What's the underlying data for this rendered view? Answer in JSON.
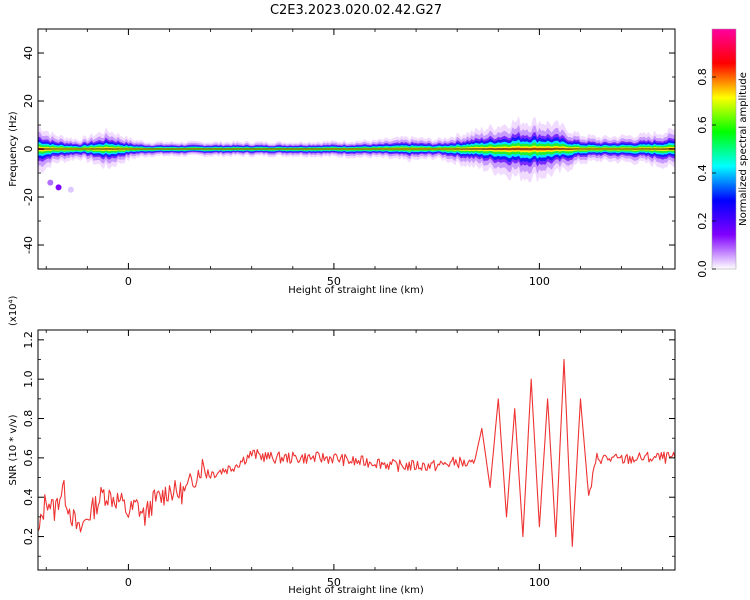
{
  "title": "C2E3.2023.020.02.42.G27",
  "chart_data": [
    {
      "type": "heatmap",
      "xlabel": "Height of straight line (km)",
      "ylabel": "Frequency (Hz)",
      "xlim": [
        -22,
        133
      ],
      "ylim": [
        -50,
        50
      ],
      "xticks": [
        "0",
        "50",
        "100"
      ],
      "xtick_values": [
        0,
        50,
        100
      ],
      "yticks": [
        "40",
        "20",
        "0",
        "-20",
        "-40"
      ],
      "ytick_values": [
        40,
        20,
        0,
        -20,
        -40
      ],
      "ridge_frequency": 0,
      "spread_profile": {
        "x": [
          -22,
          -18,
          -12,
          -5,
          1,
          5,
          20,
          40,
          60,
          68,
          75,
          80,
          85,
          90,
          95,
          100,
          105,
          110,
          115,
          125,
          133
        ],
        "halfwidth": [
          5,
          3,
          2,
          4,
          2,
          1.5,
          1.5,
          1.5,
          1.8,
          2.5,
          2,
          3,
          4,
          5,
          6,
          6,
          5,
          3,
          2.5,
          3,
          4
        ]
      },
      "outlier_points": [
        {
          "x": -19,
          "y": -14,
          "amplitude": 0.05
        },
        {
          "x": -17,
          "y": -16,
          "amplitude": 0.1
        },
        {
          "x": -14,
          "y": -17,
          "amplitude": 0.02
        }
      ],
      "colorbar": {
        "label": "Normalized spectral amplitude",
        "range": [
          0,
          1
        ],
        "ticks": [
          "0.0",
          "0.2",
          "0.4",
          "0.6",
          "0.8"
        ],
        "tick_values": [
          0,
          0.2,
          0.4,
          0.6,
          0.8
        ],
        "colors": [
          "#ffffff",
          "#8000ff",
          "#0000ff",
          "#00ffff",
          "#00ff00",
          "#ffff00",
          "#ff0000",
          "#ff00a0"
        ]
      }
    },
    {
      "type": "line",
      "xlabel": "Height of straight line (km)",
      "ylabel": "SNR (10 * v/v)",
      "y_scale_label": "(x10⁴)",
      "xlim": [
        -22,
        133
      ],
      "ylim": [
        0.03,
        1.25
      ],
      "xticks": [
        "0",
        "50",
        "100"
      ],
      "xtick_values": [
        0,
        50,
        100
      ],
      "yticks": [
        "0.2",
        "0.4",
        "0.6",
        "0.8",
        "1.0",
        "1.2"
      ],
      "ytick_values": [
        0.2,
        0.4,
        0.6,
        0.8,
        1.0,
        1.2
      ],
      "series_color": "#ee3333",
      "x": [
        -22,
        -20,
        -18,
        -16,
        -14,
        -12,
        -10,
        -8,
        -6,
        -4,
        -2,
        0,
        2,
        4,
        6,
        8,
        10,
        12,
        14,
        16,
        18,
        20,
        25,
        30,
        35,
        40,
        45,
        50,
        55,
        60,
        65,
        70,
        75,
        80,
        84,
        86,
        88,
        90,
        92,
        94,
        96,
        98,
        100,
        102,
        104,
        106,
        108,
        110,
        112,
        114,
        120,
        125,
        130,
        133
      ],
      "y": [
        0.2,
        0.4,
        0.33,
        0.45,
        0.32,
        0.22,
        0.3,
        0.36,
        0.42,
        0.4,
        0.38,
        0.32,
        0.36,
        0.3,
        0.38,
        0.4,
        0.44,
        0.42,
        0.43,
        0.5,
        0.56,
        0.52,
        0.55,
        0.62,
        0.6,
        0.6,
        0.6,
        0.6,
        0.58,
        0.58,
        0.56,
        0.56,
        0.56,
        0.58,
        0.56,
        0.75,
        0.45,
        0.9,
        0.3,
        0.85,
        0.2,
        1.0,
        0.25,
        0.9,
        0.2,
        1.1,
        0.15,
        0.9,
        0.4,
        0.6,
        0.59,
        0.6,
        0.6,
        0.6
      ]
    }
  ]
}
